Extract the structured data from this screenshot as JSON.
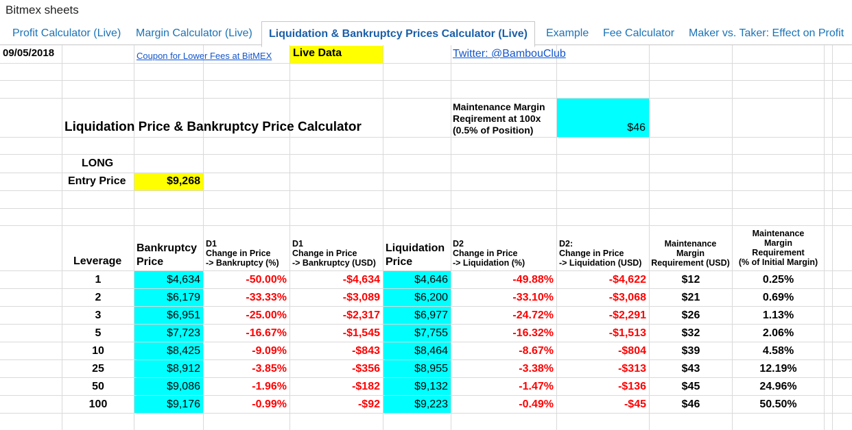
{
  "app": {
    "title": "Bitmex sheets"
  },
  "tabs": [
    {
      "label": "Profit Calculator (Live)"
    },
    {
      "label": "Margin Calculator (Live)"
    },
    {
      "label": "Liquidation & Bankruptcy Prices Calculator (Live)"
    },
    {
      "label": "Example"
    },
    {
      "label": "Fee Calculator"
    },
    {
      "label": "Maker vs. Taker: Effect on Profit"
    }
  ],
  "top_row": {
    "date": "09/05/2018",
    "coupon_link": "Coupon for Lower Fees at BitMEX",
    "live_data": "Live Data",
    "twitter_link": "Twitter: @BambouClub"
  },
  "calculator": {
    "title": "Liquidation Price & Bankruptcy Price Calculator",
    "maintenance_label_1": "Maintenance Margin",
    "maintenance_label_2": "Reqirement at 100x",
    "maintenance_label_3": "(0.5% of Position)",
    "maintenance_value": "$46",
    "position": "LONG",
    "entry_label": "Entry Price",
    "entry_value": "$9,268"
  },
  "table": {
    "headers": {
      "leverage": "Leverage",
      "bankruptcy_1": "Bankruptcy",
      "bankruptcy_2": "Price",
      "d1_pct_1": "D1",
      "d1_pct_2": "Change in Price",
      "d1_pct_3": "-> Bankruptcy (%)",
      "d1_usd_1": "D1",
      "d1_usd_2": "Change in Price",
      "d1_usd_3": "-> Bankruptcy (USD)",
      "liquidation_1": "Liquidation",
      "liquidation_2": "Price",
      "d2_pct_1": "D2",
      "d2_pct_2": "Change in Price",
      "d2_pct_3": "-> Liquidation (%)",
      "d2_usd_1": "D2:",
      "d2_usd_2": "Change in Price",
      "d2_usd_3": "-> Liquidation (USD)",
      "mm_usd_1": "Maintenance",
      "mm_usd_2": "Margin",
      "mm_usd_3": "Requirement (USD)",
      "mm_pct_1": "Maintenance",
      "mm_pct_2": "Margin",
      "mm_pct_3": "Requirement",
      "mm_pct_4": "(% of Initial Margin)"
    },
    "rows": [
      {
        "leverage": "1",
        "bankruptcy": "$4,634",
        "d1_pct": "-50.00%",
        "d1_usd": "-$4,634",
        "liquidation": "$4,646",
        "d2_pct": "-49.88%",
        "d2_usd": "-$4,622",
        "mm_usd": "$12",
        "mm_pct": "0.25%"
      },
      {
        "leverage": "2",
        "bankruptcy": "$6,179",
        "d1_pct": "-33.33%",
        "d1_usd": "-$3,089",
        "liquidation": "$6,200",
        "d2_pct": "-33.10%",
        "d2_usd": "-$3,068",
        "mm_usd": "$21",
        "mm_pct": "0.69%"
      },
      {
        "leverage": "3",
        "bankruptcy": "$6,951",
        "d1_pct": "-25.00%",
        "d1_usd": "-$2,317",
        "liquidation": "$6,977",
        "d2_pct": "-24.72%",
        "d2_usd": "-$2,291",
        "mm_usd": "$26",
        "mm_pct": "1.13%"
      },
      {
        "leverage": "5",
        "bankruptcy": "$7,723",
        "d1_pct": "-16.67%",
        "d1_usd": "-$1,545",
        "liquidation": "$7,755",
        "d2_pct": "-16.32%",
        "d2_usd": "-$1,513",
        "mm_usd": "$32",
        "mm_pct": "2.06%"
      },
      {
        "leverage": "10",
        "bankruptcy": "$8,425",
        "d1_pct": "-9.09%",
        "d1_usd": "-$843",
        "liquidation": "$8,464",
        "d2_pct": "-8.67%",
        "d2_usd": "-$804",
        "mm_usd": "$39",
        "mm_pct": "4.58%"
      },
      {
        "leverage": "25",
        "bankruptcy": "$8,912",
        "d1_pct": "-3.85%",
        "d1_usd": "-$356",
        "liquidation": "$8,955",
        "d2_pct": "-3.38%",
        "d2_usd": "-$313",
        "mm_usd": "$43",
        "mm_pct": "12.19%"
      },
      {
        "leverage": "50",
        "bankruptcy": "$9,086",
        "d1_pct": "-1.96%",
        "d1_usd": "-$182",
        "liquidation": "$9,132",
        "d2_pct": "-1.47%",
        "d2_usd": "-$136",
        "mm_usd": "$45",
        "mm_pct": "24.96%"
      },
      {
        "leverage": "100",
        "bankruptcy": "$9,176",
        "d1_pct": "-0.99%",
        "d1_usd": "-$92",
        "liquidation": "$9,223",
        "d2_pct": "-0.49%",
        "d2_usd": "-$45",
        "mm_usd": "$46",
        "mm_pct": "50.50%"
      }
    ]
  },
  "colors": {
    "highlight_yellow": "#ffff00",
    "highlight_cyan": "#00ffff",
    "negative_red": "#ff0000",
    "link_blue": "#1155cc",
    "tab_blue": "#1a73b7"
  }
}
